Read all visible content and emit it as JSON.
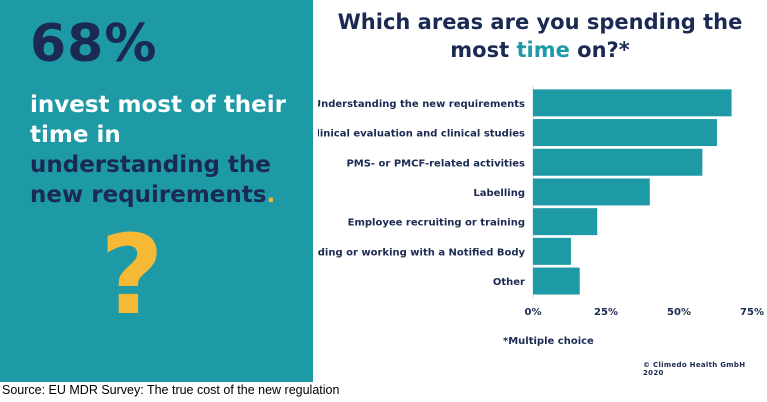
{
  "left_panel": {
    "stat": "68%",
    "line1": "invest most of their",
    "line2": "time in",
    "line3": "understanding the",
    "line4": "new requirements",
    "period": ".",
    "question_mark": "?"
  },
  "title": {
    "part1": "Which areas are you spending the",
    "part2": "most ",
    "highlight": "time",
    "part3": " on?*"
  },
  "chart_data": {
    "type": "bar",
    "orientation": "horizontal",
    "categories": [
      "Understanding the new requirements",
      "Clinical evaluation and clinical studies",
      "PMS- or PMCF-related activities",
      "Labelling",
      "Employee recruiting or training",
      "Finding or working with a Notified Body",
      "Other"
    ],
    "values": [
      68,
      63,
      58,
      40,
      22,
      13,
      16
    ],
    "xlim": [
      0,
      75
    ],
    "ticks": [
      "0%",
      "25%",
      "50%",
      "75%"
    ],
    "bar_color": "#1d9aa6"
  },
  "footnote": "*Multiple choice",
  "copyright": "© Climedo Health GmbH 2020",
  "source": "Source: EU MDR Survey: The true cost of the new regulation"
}
